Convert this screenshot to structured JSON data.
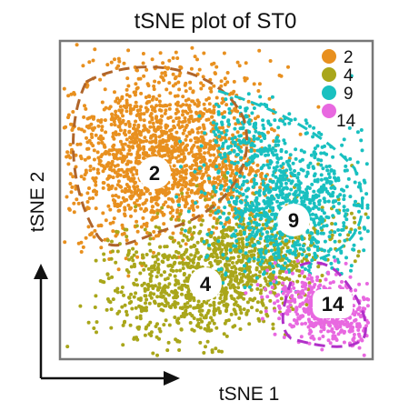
{
  "chart_data": {
    "type": "scatter",
    "title": "tSNE plot of ST0",
    "xlabel": "tSNE 1",
    "ylabel": "tSNE 2",
    "legend_position": "top-right",
    "series": [
      {
        "name": "2",
        "color": "#e8901f"
      },
      {
        "name": "4",
        "color": "#a9a61a"
      },
      {
        "name": "9",
        "color": "#19c0c0"
      },
      {
        "name": "14",
        "color": "#e868e0"
      }
    ],
    "cluster_labels": [
      "2",
      "9",
      "4",
      "14"
    ],
    "outline_colors": {
      "2": "#b0652a",
      "9": "#19c0c0",
      "14": "#b030c8"
    }
  }
}
